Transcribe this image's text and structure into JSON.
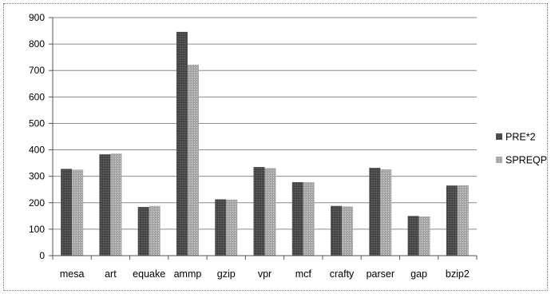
{
  "chart_data": {
    "type": "bar",
    "categories": [
      "mesa",
      "art",
      "equake",
      "ammp",
      "gzip",
      "vpr",
      "mcf",
      "crafty",
      "parser",
      "gap",
      "bzip2"
    ],
    "series": [
      {
        "name": "PRE*2",
        "color": "#555555",
        "values": [
          328,
          383,
          184,
          846,
          213,
          335,
          278,
          188,
          332,
          150,
          265
        ]
      },
      {
        "name": "SPREQP",
        "color": "#b0b0b0",
        "values": [
          325,
          386,
          188,
          722,
          212,
          331,
          278,
          186,
          326,
          148,
          266
        ]
      }
    ],
    "title": "",
    "xlabel": "",
    "ylabel": "",
    "ylim": [
      0,
      900
    ],
    "yticks": [
      0,
      100,
      200,
      300,
      400,
      500,
      600,
      700,
      800,
      900
    ],
    "grid": true,
    "legend": "right"
  }
}
